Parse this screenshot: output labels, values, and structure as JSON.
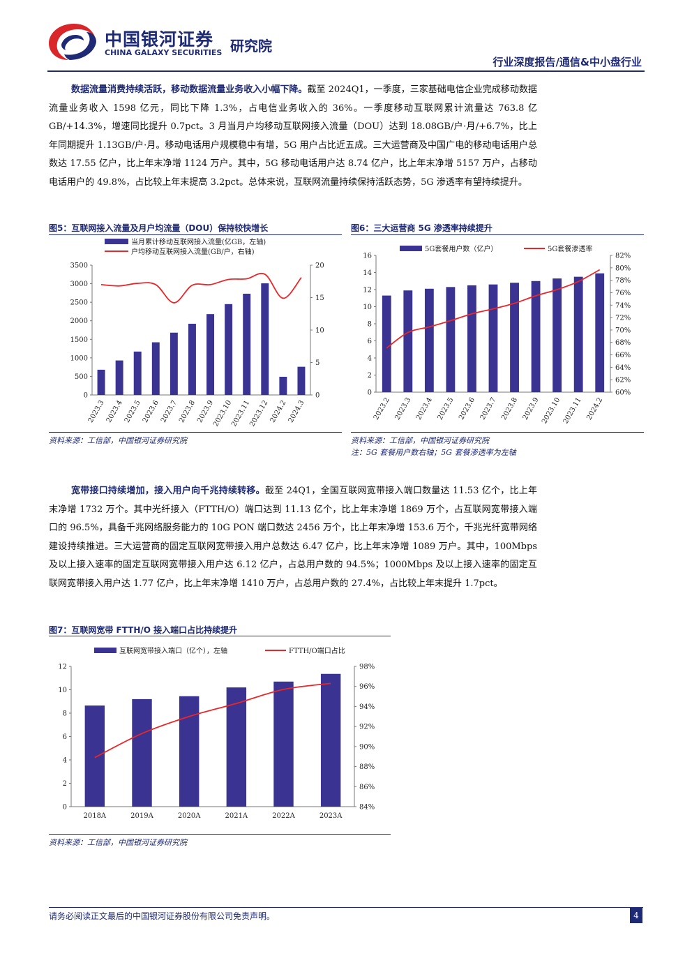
{
  "header": {
    "brand_cn": "中国银河证券",
    "brand_en": "CHINA GALAXY SECURITIES",
    "brand_institute": "研究院",
    "report_type": "行业深度报告/通信&中小盘行业"
  },
  "paragraph1": {
    "lead": "数据流量消费持续活跃，移动数据流量业务收入小幅下降。",
    "body": "截至 2024Q1，一季度，三家基础电信企业完成移动数据流量业务收入 1598 亿元，同比下降 1.3%，占电信业务收入的 36%。一季度移动互联网累计流量达 763.8 亿 GB/+14.3%，增速同比提升 0.7pct。3 月当月户均移动互联网接入流量（DOU）达到 18.08GB/户·月/+6.7%，比上年同期提升 1.13GB/户·月。移动电话用户规模稳中有增，5G 用户占比近五成。三大运营商及中国广电的移动电话用户总数达 17.55 亿户，比上年末净增 1124 万户。其中，5G 移动电话用户达 8.74 亿户，比上年末净增 5157 万户，占移动电话用户的 49.8%，占比较上年末提高 3.2pct。总体来说，互联网流量持续保持活跃态势，5G 渗透率有望持续提升。"
  },
  "paragraph2": {
    "lead": "宽带接口持续增加，接入用户向千兆持续转移。",
    "body": "截至 24Q1，全国互联网宽带接入端口数量达 11.53 亿个，比上年末净增 1732 万个。其中光纤接入（FTTH/O）端口达到 11.13 亿个，比上年末净增 1869 万个，占互联网宽带接入端口的 96.5%，具备千兆网络服务能力的 10G PON 端口数达 2456 万个，比上年末净增 153.6 万个，千兆光纤宽带网络建设持续推进。三大运营商的固定互联网宽带接入用户总数达 6.47 亿户，比上年末净增 1089 万户。其中，100Mbps 及以上接入速率的固定互联网宽带接入用户达 6.12 亿户，占总用户数的 94.5%；1000Mbps 及以上接入速率的固定互联网宽带接入用户达 1.77 亿户，比上年末净增 1410 万户，占总用户数的 27.4%，占比较上年末提升 1.7pct。"
  },
  "figures": {
    "fig5": {
      "title": "图5：互联网接入流量及月户均流量（DOU）保持较快增长",
      "source": "资料来源：工信部，中国银河证券研究院"
    },
    "fig6": {
      "title": "图6：三大运营商 5G 渗透率持续提升",
      "source": "资料来源：工信部，中国银河证券研究院",
      "note": "注：5G 套餐用户数右轴；5G 套餐渗透率为左轴"
    },
    "fig7": {
      "title": "图7：互联网宽带 FTTH/O 接入端口占比持续提升",
      "source": "资料来源：工信部，中国银河证券研究院"
    }
  },
  "chart_data": [
    {
      "id": "fig5",
      "type": "bar",
      "categories": [
        "2023.3",
        "2023.4",
        "2023.5",
        "2023.6",
        "2023.7",
        "2023.8",
        "2023.9",
        "2023.10",
        "2023.11",
        "2023.12",
        "2024.2",
        "2024.3"
      ],
      "series": [
        {
          "name": "当月累计移动互联网接入流量(亿GB，左轴)",
          "type": "bar",
          "axis": "left",
          "values": [
            680,
            930,
            1170,
            1420,
            1680,
            1920,
            2180,
            2450,
            2730,
            3010,
            490,
            760
          ]
        },
        {
          "name": "户均移动互联网接入流量(GB/户，右轴)",
          "type": "line",
          "axis": "right",
          "values": [
            17.0,
            16.8,
            17.2,
            17.0,
            14.2,
            16.9,
            17.0,
            17.8,
            17.9,
            18.6,
            14.9,
            18.1
          ]
        }
      ],
      "y_left": {
        "ylim": [
          0,
          3500
        ],
        "ticks": [
          0,
          500,
          1000,
          1500,
          2000,
          2500,
          3000,
          3500
        ]
      },
      "y_right": {
        "ylim": [
          0,
          20
        ],
        "ticks": [
          0,
          5,
          10,
          15,
          20
        ]
      },
      "colors": {
        "bar": "#3a3391",
        "line": "#e8272a"
      },
      "legend": "top"
    },
    {
      "id": "fig6",
      "type": "bar",
      "categories": [
        "2023.2",
        "2023.3",
        "2023.4",
        "2023.5",
        "2023.6",
        "2023.7",
        "2023.8",
        "2023.9",
        "2023.10",
        "2023.11",
        "2024.2"
      ],
      "series": [
        {
          "name": "5G套餐用户数（亿户）",
          "type": "bar",
          "axis": "left",
          "values": [
            11.3,
            11.9,
            12.1,
            12.3,
            12.5,
            12.6,
            12.8,
            13.0,
            13.3,
            13.5,
            13.9
          ]
        },
        {
          "name": "5G套餐渗透率",
          "type": "line",
          "axis": "right",
          "values": [
            67.1,
            69.6,
            70.5,
            71.5,
            72.6,
            73.4,
            74.3,
            75.5,
            76.5,
            77.8,
            79.7
          ]
        }
      ],
      "y_left": {
        "ylim": [
          0,
          16
        ],
        "ticks": [
          0,
          2,
          4,
          6,
          8,
          10,
          12,
          14,
          16
        ]
      },
      "y_right": {
        "ylim": [
          60,
          82
        ],
        "ticks": [
          "60%",
          "62%",
          "64%",
          "66%",
          "68%",
          "70%",
          "72%",
          "74%",
          "76%",
          "78%",
          "80%",
          "82%"
        ]
      },
      "colors": {
        "bar": "#3a3391",
        "line": "#e8272a"
      },
      "legend": "top"
    },
    {
      "id": "fig7",
      "type": "bar",
      "categories": [
        "2018A",
        "2019A",
        "2020A",
        "2021A",
        "2022A",
        "2023A"
      ],
      "series": [
        {
          "name": "互联网宽带接入端口（亿个），左轴",
          "type": "bar",
          "axis": "left",
          "values": [
            8.65,
            9.2,
            9.45,
            10.2,
            10.7,
            11.36
          ]
        },
        {
          "name": "FTTH/O端口占比",
          "type": "line",
          "axis": "right",
          "values": [
            88.9,
            91.3,
            93.0,
            94.3,
            95.7,
            96.3
          ]
        }
      ],
      "y_left": {
        "ylim": [
          0,
          12
        ],
        "ticks": [
          0,
          2,
          4,
          6,
          8,
          10,
          12
        ]
      },
      "y_right": {
        "ylim": [
          84,
          98
        ],
        "ticks": [
          "84%",
          "86%",
          "88%",
          "90%",
          "92%",
          "94%",
          "96%",
          "98%"
        ]
      },
      "colors": {
        "bar": "#3a3391",
        "line": "#e8272a"
      },
      "legend": "top"
    }
  ],
  "footer": {
    "disclaimer": "请务必阅读正文最后的中国银河证券股份有限公司免责声明。",
    "page_number": "4"
  }
}
